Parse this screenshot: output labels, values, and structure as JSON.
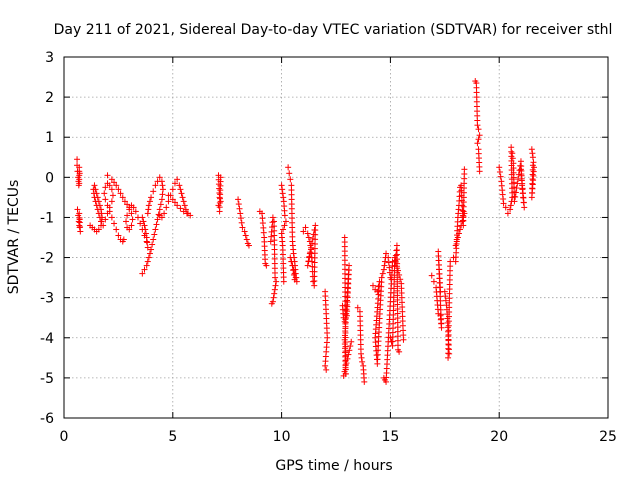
{
  "chart_data": {
    "type": "scatter",
    "title": "Day 211 of 2021, Sidereal Day-to-day VTEC variation (SDTVAR) for receiver sthl",
    "xlabel": "GPS time / hours",
    "ylabel": "SDTVAR / TECUs",
    "xlim": [
      0,
      25
    ],
    "ylim": [
      -6,
      3
    ],
    "xticks": [
      "0",
      "5",
      "10",
      "15",
      "20",
      "25"
    ],
    "yticks": [
      "3",
      "2",
      "1",
      "0",
      "-1",
      "-2",
      "-3",
      "-4",
      "-5",
      "-6"
    ],
    "grid": true,
    "marker": "+",
    "marker_color": "#ff0000",
    "series": [
      {
        "name": "SDTVAR",
        "segments": [
          {
            "x": [
              0.6,
              0.6,
              0.62,
              0.65,
              0.68,
              0.7,
              0.7,
              0.72
            ],
            "y": [
              0.45,
              0.3,
              0.15,
              0.0,
              -0.2,
              -0.15,
              0.25,
              0.1
            ]
          },
          {
            "x": [
              0.62,
              0.65,
              0.68,
              0.7,
              0.72,
              0.75,
              0.7,
              0.72
            ],
            "y": [
              -0.8,
              -0.95,
              -1.1,
              -1.2,
              -1.25,
              -1.35,
              -0.9,
              -1.05
            ]
          },
          {
            "x": [
              1.2,
              1.3,
              1.4,
              1.5,
              1.6,
              1.7,
              1.75,
              1.7,
              1.6,
              1.5,
              1.4,
              1.35,
              1.4,
              1.5,
              1.6,
              1.7,
              1.8,
              1.9,
              2.0,
              2.1,
              2.2,
              2.25,
              2.2,
              2.1,
              2.0,
              1.9,
              1.85,
              1.9,
              2.0,
              2.1,
              2.2,
              2.3,
              2.4,
              2.5,
              2.6,
              2.7,
              2.75
            ],
            "y": [
              -1.2,
              -1.25,
              -1.3,
              -1.35,
              -1.3,
              -1.2,
              -1.0,
              -0.8,
              -0.6,
              -0.4,
              -0.2,
              -0.3,
              -0.5,
              -0.7,
              -0.9,
              -1.1,
              -1.2,
              -1.05,
              -0.9,
              -0.75,
              -0.6,
              -0.45,
              -0.3,
              -0.2,
              -0.15,
              -0.25,
              -0.4,
              -0.55,
              -0.7,
              -0.85,
              -1.0,
              -1.15,
              -1.3,
              -1.45,
              -1.55,
              -1.6,
              -1.55
            ]
          },
          {
            "x": [
              2.0,
              2.2,
              2.4,
              2.6,
              2.8,
              3.0,
              3.1,
              3.15,
              3.1,
              3.0,
              2.9,
              2.85,
              2.9,
              3.0,
              3.1,
              3.2,
              3.3,
              3.4,
              3.5,
              3.6,
              3.7,
              3.8,
              3.85,
              3.8,
              3.7,
              3.6
            ],
            "y": [
              0.05,
              -0.05,
              -0.2,
              -0.4,
              -0.6,
              -0.75,
              -0.9,
              -1.05,
              -1.2,
              -1.3,
              -1.25,
              -1.1,
              -0.95,
              -0.8,
              -0.7,
              -0.75,
              -0.85,
              -1.0,
              -1.15,
              -1.3,
              -1.45,
              -1.6,
              -1.75,
              -1.5,
              -1.2,
              -1.0
            ]
          },
          {
            "x": [
              3.6,
              3.7,
              3.8,
              3.9,
              4.0,
              4.1,
              4.2,
              4.3,
              4.4,
              4.5,
              4.55,
              4.5,
              4.4,
              4.3,
              4.2,
              4.1,
              4.0,
              3.9,
              3.85
            ],
            "y": [
              -2.4,
              -2.3,
              -2.2,
              -2.0,
              -1.8,
              -1.55,
              -1.3,
              -1.05,
              -0.8,
              -0.55,
              -0.3,
              -0.1,
              0.0,
              -0.1,
              -0.2,
              -0.35,
              -0.5,
              -0.7,
              -0.9
            ]
          },
          {
            "x": [
              4.4,
              4.5,
              4.6,
              4.7,
              4.8,
              4.9,
              5.0,
              5.1,
              5.2,
              5.3,
              5.4,
              5.5,
              5.6,
              5.7,
              5.8,
              5.5,
              5.2,
              5.0,
              4.8
            ],
            "y": [
              -0.95,
              -1.0,
              -0.9,
              -0.75,
              -0.6,
              -0.45,
              -0.3,
              -0.15,
              -0.05,
              -0.2,
              -0.4,
              -0.6,
              -0.8,
              -0.9,
              -0.95,
              -0.85,
              -0.7,
              -0.55,
              -0.45
            ]
          },
          {
            "x": [
              7.1,
              7.15,
              7.2,
              7.1,
              7.15,
              7.2
            ],
            "y": [
              0.05,
              -0.5,
              -0.6,
              -0.7,
              -0.85,
              0.0
            ]
          },
          {
            "x": [
              8.0,
              8.2,
              8.3,
              8.35,
              8.4,
              8.45,
              8.5
            ],
            "y": [
              -0.55,
              -1.25,
              -1.35,
              -1.45,
              -1.55,
              -1.65,
              -1.7
            ]
          },
          {
            "x": [
              9.0,
              9.1,
              9.2,
              9.25,
              9.3
            ],
            "y": [
              -0.85,
              -0.9,
              -1.5,
              -2.15,
              -2.2
            ]
          },
          {
            "x": [
              9.5,
              9.6,
              9.65,
              9.7,
              9.75,
              9.6,
              9.55
            ],
            "y": [
              -1.6,
              -1.0,
              -1.1,
              -2.5,
              -2.6,
              -3.1,
              -3.15
            ]
          },
          {
            "x": [
              10.0,
              10.05,
              10.1,
              10.15,
              10.2,
              10.0,
              10.05,
              10.1
            ],
            "y": [
              -0.2,
              -0.4,
              -0.6,
              -0.95,
              -1.1,
              -1.4,
              -1.7,
              -2.6
            ]
          },
          {
            "x": [
              10.3,
              10.35,
              10.4,
              10.45,
              10.5,
              10.55,
              10.6,
              10.65,
              10.7,
              10.4,
              10.5,
              10.6
            ],
            "y": [
              0.25,
              0.1,
              -0.05,
              -0.2,
              -1.6,
              -1.9,
              -2.1,
              -2.4,
              -2.6,
              -2.0,
              -2.2,
              -2.55
            ]
          },
          {
            "x": [
              11.0,
              11.1,
              11.2,
              11.3,
              11.35,
              11.4,
              11.45,
              11.5,
              11.55,
              11.2,
              11.3
            ],
            "y": [
              -1.35,
              -1.25,
              -1.4,
              -1.6,
              -1.8,
              -2.1,
              -2.6,
              -2.7,
              -1.2,
              -2.2,
              -1.9
            ]
          },
          {
            "x": [
              12.0,
              12.05,
              12.1,
              12.0,
              12.05
            ],
            "y": [
              -2.85,
              -3.4,
              -4.0,
              -4.7,
              -4.8
            ]
          },
          {
            "x": [
              12.8,
              12.85,
              12.9,
              13.0,
              13.1,
              12.9,
              12.95
            ],
            "y": [
              -3.2,
              -3.5,
              -3.6,
              -3.45,
              -2.2,
              -4.05,
              -4.9
            ]
          },
          {
            "x": [
              12.9,
              12.95,
              12.85,
              13.2
            ],
            "y": [
              -1.5,
              -4.9,
              -4.95,
              -4.1
            ]
          },
          {
            "x": [
              13.5,
              13.6,
              13.65,
              13.7,
              13.75,
              13.8
            ],
            "y": [
              -3.25,
              -3.35,
              -4.4,
              -4.6,
              -4.7,
              -5.1
            ]
          },
          {
            "x": [
              14.2,
              14.3,
              14.4,
              14.5,
              14.3,
              14.4,
              14.6,
              14.7,
              14.8,
              14.9,
              15.0
            ],
            "y": [
              -2.7,
              -2.8,
              -2.85,
              -2.6,
              -4.0,
              -4.65,
              -2.5,
              -2.3,
              -1.9,
              -2.0,
              -2.5
            ]
          },
          {
            "x": [
              14.7,
              14.75,
              14.8,
              15.1,
              15.2,
              15.3,
              15.35,
              15.4
            ],
            "y": [
              -5.0,
              -5.05,
              -5.1,
              -2.1,
              -2.2,
              -1.7,
              -4.3,
              -4.35
            ]
          },
          {
            "x": [
              15.0,
              15.1,
              15.2,
              15.5,
              15.6
            ],
            "y": [
              -4.0,
              -4.2,
              -2.0,
              -2.65,
              -4.05
            ]
          },
          {
            "x": [
              16.9,
              17.0,
              17.1,
              17.2,
              17.3,
              17.35,
              17.2,
              17.3
            ],
            "y": [
              -2.45,
              -2.6,
              -2.75,
              -3.4,
              -3.45,
              -3.75,
              -1.85,
              -2.85
            ]
          },
          {
            "x": [
              17.5,
              17.6,
              17.7,
              17.65,
              17.75
            ],
            "y": [
              -2.85,
              -3.3,
              -4.4,
              -4.5,
              -2.1
            ]
          },
          {
            "x": [
              17.9,
              18.0,
              18.1,
              18.15,
              18.2,
              18.25,
              18.3,
              18.35,
              18.4
            ],
            "y": [
              -2.0,
              -2.1,
              -1.0,
              -0.7,
              -0.25,
              -0.2,
              -0.7,
              -1.2,
              0.2
            ]
          },
          {
            "x": [
              18.0,
              18.1,
              18.2,
              18.3,
              18.4
            ],
            "y": [
              -1.7,
              -1.5,
              -1.3,
              -1.1,
              -0.9
            ]
          },
          {
            "x": [
              18.9,
              18.95,
              19.0,
              19.05,
              19.1,
              19.0,
              19.05,
              19.1
            ],
            "y": [
              2.4,
              2.35,
              1.3,
              1.2,
              1.05,
              0.85,
              0.7,
              0.15
            ]
          },
          {
            "x": [
              20.0,
              20.1,
              20.2,
              20.3,
              20.4,
              20.5,
              20.6,
              20.55
            ],
            "y": [
              0.25,
              -0.1,
              -0.65,
              -0.75,
              -0.9,
              -0.8,
              -0.5,
              0.75
            ]
          },
          {
            "x": [
              20.6,
              20.65,
              20.7,
              21.0,
              21.05,
              21.1,
              21.15,
              21.0
            ],
            "y": [
              0.6,
              0.35,
              -0.6,
              0.4,
              -0.2,
              -0.5,
              -0.75,
              0.2
            ]
          },
          {
            "x": [
              21.5,
              21.55,
              21.6,
              21.5,
              21.55
            ],
            "y": [
              0.7,
              0.5,
              0.25,
              -0.5,
              0.3
            ]
          }
        ]
      }
    ]
  }
}
